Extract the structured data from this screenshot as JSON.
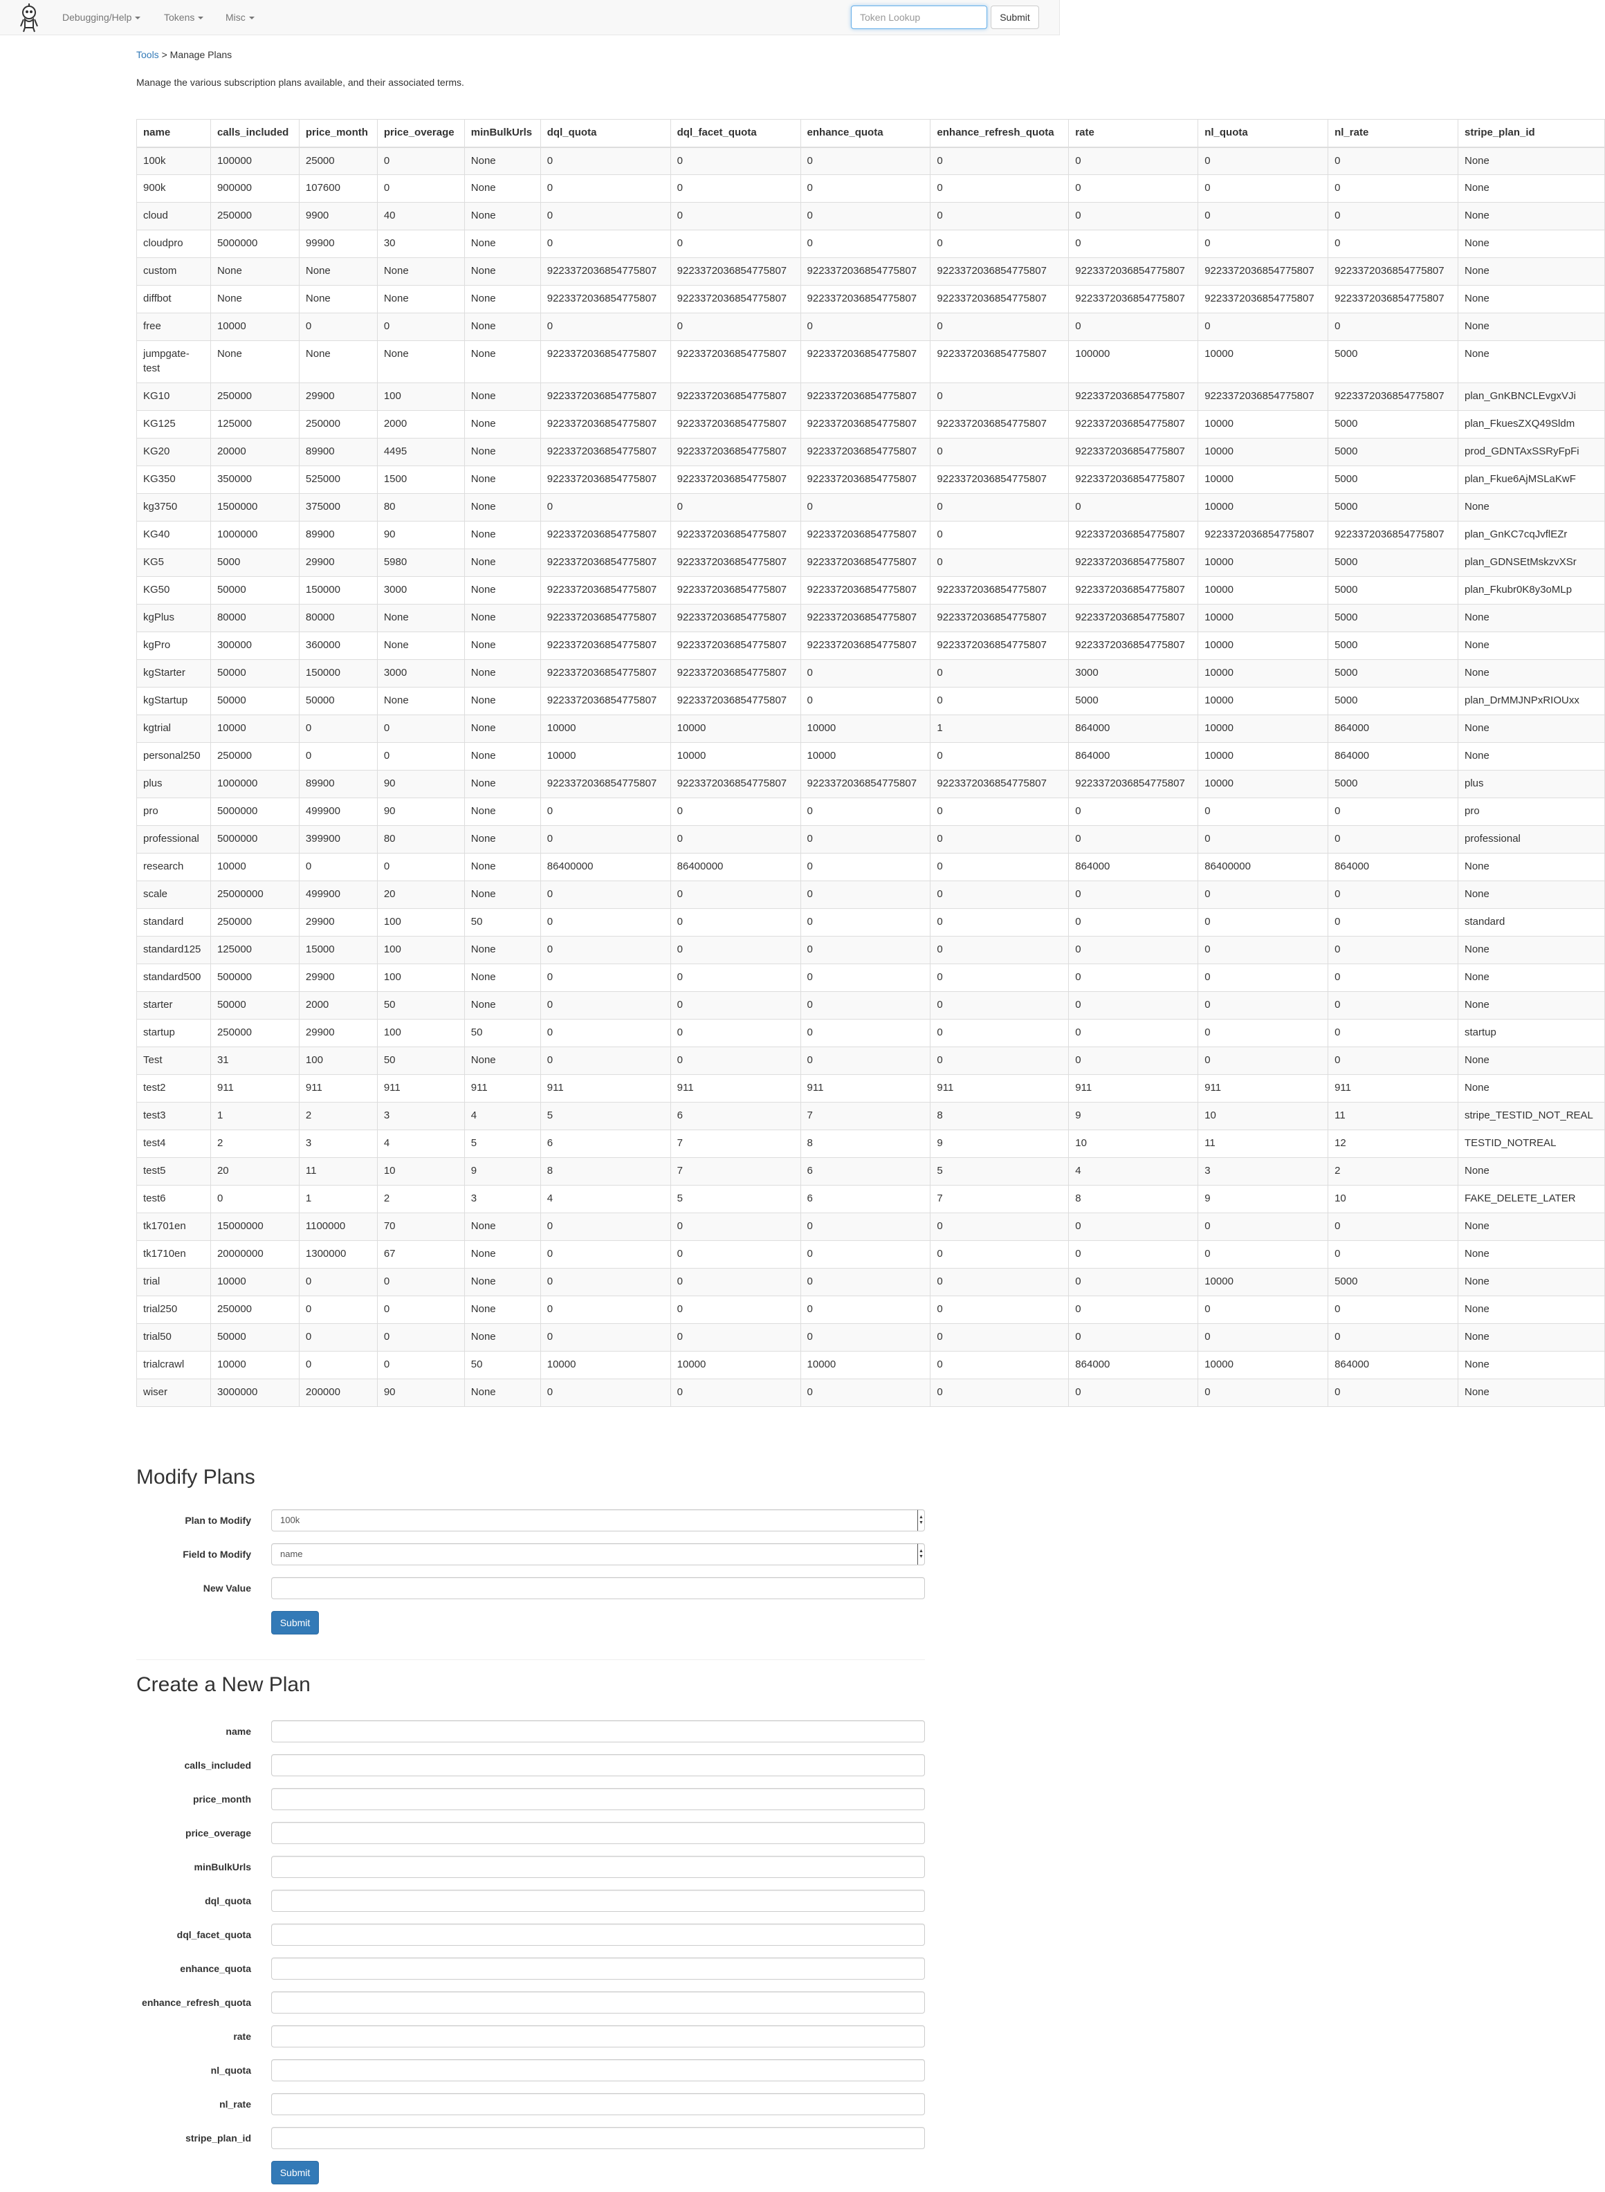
{
  "nav": {
    "items": [
      "Debugging/Help",
      "Tokens",
      "Misc"
    ],
    "token_placeholder": "Token Lookup",
    "submit_label": "Submit"
  },
  "breadcrumb": {
    "link": "Tools",
    "separator": ">",
    "current": "Manage Plans"
  },
  "intro": "Manage the various subscription plans available, and their associated terms.",
  "table": {
    "headers": [
      "name",
      "calls_included",
      "price_month",
      "price_overage",
      "minBulkUrls",
      "dql_quota",
      "dql_facet_quota",
      "enhance_quota",
      "enhance_refresh_quota",
      "rate",
      "nl_quota",
      "nl_rate",
      "stripe_plan_id"
    ],
    "rows": [
      [
        "100k",
        "100000",
        "25000",
        "0",
        "None",
        "0",
        "0",
        "0",
        "0",
        "0",
        "0",
        "0",
        "None"
      ],
      [
        "900k",
        "900000",
        "107600",
        "0",
        "None",
        "0",
        "0",
        "0",
        "0",
        "0",
        "0",
        "0",
        "None"
      ],
      [
        "cloud",
        "250000",
        "9900",
        "40",
        "None",
        "0",
        "0",
        "0",
        "0",
        "0",
        "0",
        "0",
        "None"
      ],
      [
        "cloudpro",
        "5000000",
        "99900",
        "30",
        "None",
        "0",
        "0",
        "0",
        "0",
        "0",
        "0",
        "0",
        "None"
      ],
      [
        "custom",
        "None",
        "None",
        "None",
        "None",
        "9223372036854775807",
        "9223372036854775807",
        "9223372036854775807",
        "9223372036854775807",
        "9223372036854775807",
        "9223372036854775807",
        "9223372036854775807",
        "None"
      ],
      [
        "diffbot",
        "None",
        "None",
        "None",
        "None",
        "9223372036854775807",
        "9223372036854775807",
        "9223372036854775807",
        "9223372036854775807",
        "9223372036854775807",
        "9223372036854775807",
        "9223372036854775807",
        "None"
      ],
      [
        "free",
        "10000",
        "0",
        "0",
        "None",
        "0",
        "0",
        "0",
        "0",
        "0",
        "0",
        "0",
        "None"
      ],
      [
        "jumpgate-test",
        "None",
        "None",
        "None",
        "None",
        "9223372036854775807",
        "9223372036854775807",
        "9223372036854775807",
        "9223372036854775807",
        "100000",
        "10000",
        "5000",
        "None"
      ],
      [
        "KG10",
        "250000",
        "29900",
        "100",
        "None",
        "9223372036854775807",
        "9223372036854775807",
        "9223372036854775807",
        "0",
        "9223372036854775807",
        "9223372036854775807",
        "9223372036854775807",
        "plan_GnKBNCLEvgxVJi"
      ],
      [
        "KG125",
        "125000",
        "250000",
        "2000",
        "None",
        "9223372036854775807",
        "9223372036854775807",
        "9223372036854775807",
        "9223372036854775807",
        "9223372036854775807",
        "10000",
        "5000",
        "plan_FkuesZXQ49Sldm"
      ],
      [
        "KG20",
        "20000",
        "89900",
        "4495",
        "None",
        "9223372036854775807",
        "9223372036854775807",
        "9223372036854775807",
        "0",
        "9223372036854775807",
        "10000",
        "5000",
        "prod_GDNTAxSSRyFpFi"
      ],
      [
        "KG350",
        "350000",
        "525000",
        "1500",
        "None",
        "9223372036854775807",
        "9223372036854775807",
        "9223372036854775807",
        "9223372036854775807",
        "9223372036854775807",
        "10000",
        "5000",
        "plan_Fkue6AjMSLaKwF"
      ],
      [
        "kg3750",
        "1500000",
        "375000",
        "80",
        "None",
        "0",
        "0",
        "0",
        "0",
        "0",
        "10000",
        "5000",
        "None"
      ],
      [
        "KG40",
        "1000000",
        "89900",
        "90",
        "None",
        "9223372036854775807",
        "9223372036854775807",
        "9223372036854775807",
        "0",
        "9223372036854775807",
        "9223372036854775807",
        "9223372036854775807",
        "plan_GnKC7cqJvflEZr"
      ],
      [
        "KG5",
        "5000",
        "29900",
        "5980",
        "None",
        "9223372036854775807",
        "9223372036854775807",
        "9223372036854775807",
        "0",
        "9223372036854775807",
        "10000",
        "5000",
        "plan_GDNSEtMskzvXSr"
      ],
      [
        "KG50",
        "50000",
        "150000",
        "3000",
        "None",
        "9223372036854775807",
        "9223372036854775807",
        "9223372036854775807",
        "9223372036854775807",
        "9223372036854775807",
        "10000",
        "5000",
        "plan_Fkubr0K8y3oMLp"
      ],
      [
        "kgPlus",
        "80000",
        "80000",
        "None",
        "None",
        "9223372036854775807",
        "9223372036854775807",
        "9223372036854775807",
        "9223372036854775807",
        "9223372036854775807",
        "10000",
        "5000",
        "None"
      ],
      [
        "kgPro",
        "300000",
        "360000",
        "None",
        "None",
        "9223372036854775807",
        "9223372036854775807",
        "9223372036854775807",
        "9223372036854775807",
        "9223372036854775807",
        "10000",
        "5000",
        "None"
      ],
      [
        "kgStarter",
        "50000",
        "150000",
        "3000",
        "None",
        "9223372036854775807",
        "9223372036854775807",
        "0",
        "0",
        "3000",
        "10000",
        "5000",
        "None"
      ],
      [
        "kgStartup",
        "50000",
        "50000",
        "None",
        "None",
        "9223372036854775807",
        "9223372036854775807",
        "0",
        "0",
        "5000",
        "10000",
        "5000",
        "plan_DrMMJNPxRIOUxx"
      ],
      [
        "kgtrial",
        "10000",
        "0",
        "0",
        "None",
        "10000",
        "10000",
        "10000",
        "1",
        "864000",
        "10000",
        "864000",
        "None"
      ],
      [
        "personal250",
        "250000",
        "0",
        "0",
        "None",
        "10000",
        "10000",
        "10000",
        "0",
        "864000",
        "10000",
        "864000",
        "None"
      ],
      [
        "plus",
        "1000000",
        "89900",
        "90",
        "None",
        "9223372036854775807",
        "9223372036854775807",
        "9223372036854775807",
        "9223372036854775807",
        "9223372036854775807",
        "10000",
        "5000",
        "plus"
      ],
      [
        "pro",
        "5000000",
        "499900",
        "90",
        "None",
        "0",
        "0",
        "0",
        "0",
        "0",
        "0",
        "0",
        "pro"
      ],
      [
        "professional",
        "5000000",
        "399900",
        "80",
        "None",
        "0",
        "0",
        "0",
        "0",
        "0",
        "0",
        "0",
        "professional"
      ],
      [
        "research",
        "10000",
        "0",
        "0",
        "None",
        "86400000",
        "86400000",
        "0",
        "0",
        "864000",
        "86400000",
        "864000",
        "None"
      ],
      [
        "scale",
        "25000000",
        "499900",
        "20",
        "None",
        "0",
        "0",
        "0",
        "0",
        "0",
        "0",
        "0",
        "None"
      ],
      [
        "standard",
        "250000",
        "29900",
        "100",
        "50",
        "0",
        "0",
        "0",
        "0",
        "0",
        "0",
        "0",
        "standard"
      ],
      [
        "standard125",
        "125000",
        "15000",
        "100",
        "None",
        "0",
        "0",
        "0",
        "0",
        "0",
        "0",
        "0",
        "None"
      ],
      [
        "standard500",
        "500000",
        "29900",
        "100",
        "None",
        "0",
        "0",
        "0",
        "0",
        "0",
        "0",
        "0",
        "None"
      ],
      [
        "starter",
        "50000",
        "2000",
        "50",
        "None",
        "0",
        "0",
        "0",
        "0",
        "0",
        "0",
        "0",
        "None"
      ],
      [
        "startup",
        "250000",
        "29900",
        "100",
        "50",
        "0",
        "0",
        "0",
        "0",
        "0",
        "0",
        "0",
        "startup"
      ],
      [
        "Test",
        "31",
        "100",
        "50",
        "None",
        "0",
        "0",
        "0",
        "0",
        "0",
        "0",
        "0",
        "None"
      ],
      [
        "test2",
        "911",
        "911",
        "911",
        "911",
        "911",
        "911",
        "911",
        "911",
        "911",
        "911",
        "911",
        "None"
      ],
      [
        "test3",
        "1",
        "2",
        "3",
        "4",
        "5",
        "6",
        "7",
        "8",
        "9",
        "10",
        "11",
        "stripe_TESTID_NOT_REAL"
      ],
      [
        "test4",
        "2",
        "3",
        "4",
        "5",
        "6",
        "7",
        "8",
        "9",
        "10",
        "11",
        "12",
        "TESTID_NOTREAL"
      ],
      [
        "test5",
        "20",
        "11",
        "10",
        "9",
        "8",
        "7",
        "6",
        "5",
        "4",
        "3",
        "2",
        "None"
      ],
      [
        "test6",
        "0",
        "1",
        "2",
        "3",
        "4",
        "5",
        "6",
        "7",
        "8",
        "9",
        "10",
        "FAKE_DELETE_LATER"
      ],
      [
        "tk1701en",
        "15000000",
        "1100000",
        "70",
        "None",
        "0",
        "0",
        "0",
        "0",
        "0",
        "0",
        "0",
        "None"
      ],
      [
        "tk1710en",
        "20000000",
        "1300000",
        "67",
        "None",
        "0",
        "0",
        "0",
        "0",
        "0",
        "0",
        "0",
        "None"
      ],
      [
        "trial",
        "10000",
        "0",
        "0",
        "None",
        "0",
        "0",
        "0",
        "0",
        "0",
        "10000",
        "5000",
        "None"
      ],
      [
        "trial250",
        "250000",
        "0",
        "0",
        "None",
        "0",
        "0",
        "0",
        "0",
        "0",
        "0",
        "0",
        "None"
      ],
      [
        "trial50",
        "50000",
        "0",
        "0",
        "None",
        "0",
        "0",
        "0",
        "0",
        "0",
        "0",
        "0",
        "None"
      ],
      [
        "trialcrawl",
        "10000",
        "0",
        "0",
        "50",
        "10000",
        "10000",
        "10000",
        "0",
        "864000",
        "10000",
        "864000",
        "None"
      ],
      [
        "wiser",
        "3000000",
        "200000",
        "90",
        "None",
        "0",
        "0",
        "0",
        "0",
        "0",
        "0",
        "0",
        "None"
      ]
    ]
  },
  "modify": {
    "title": "Modify Plans",
    "plan_label": "Plan to Modify",
    "plan_value": "100k",
    "field_label": "Field to Modify",
    "field_value": "name",
    "new_value_label": "New Value",
    "submit_label": "Submit"
  },
  "create": {
    "title": "Create a New Plan",
    "fields": [
      "name",
      "calls_included",
      "price_month",
      "price_overage",
      "minBulkUrls",
      "dql_quota",
      "dql_facet_quota",
      "enhance_quota",
      "enhance_refresh_quota",
      "rate",
      "nl_quota",
      "nl_rate",
      "stripe_plan_id"
    ],
    "submit_label": "Submit"
  }
}
